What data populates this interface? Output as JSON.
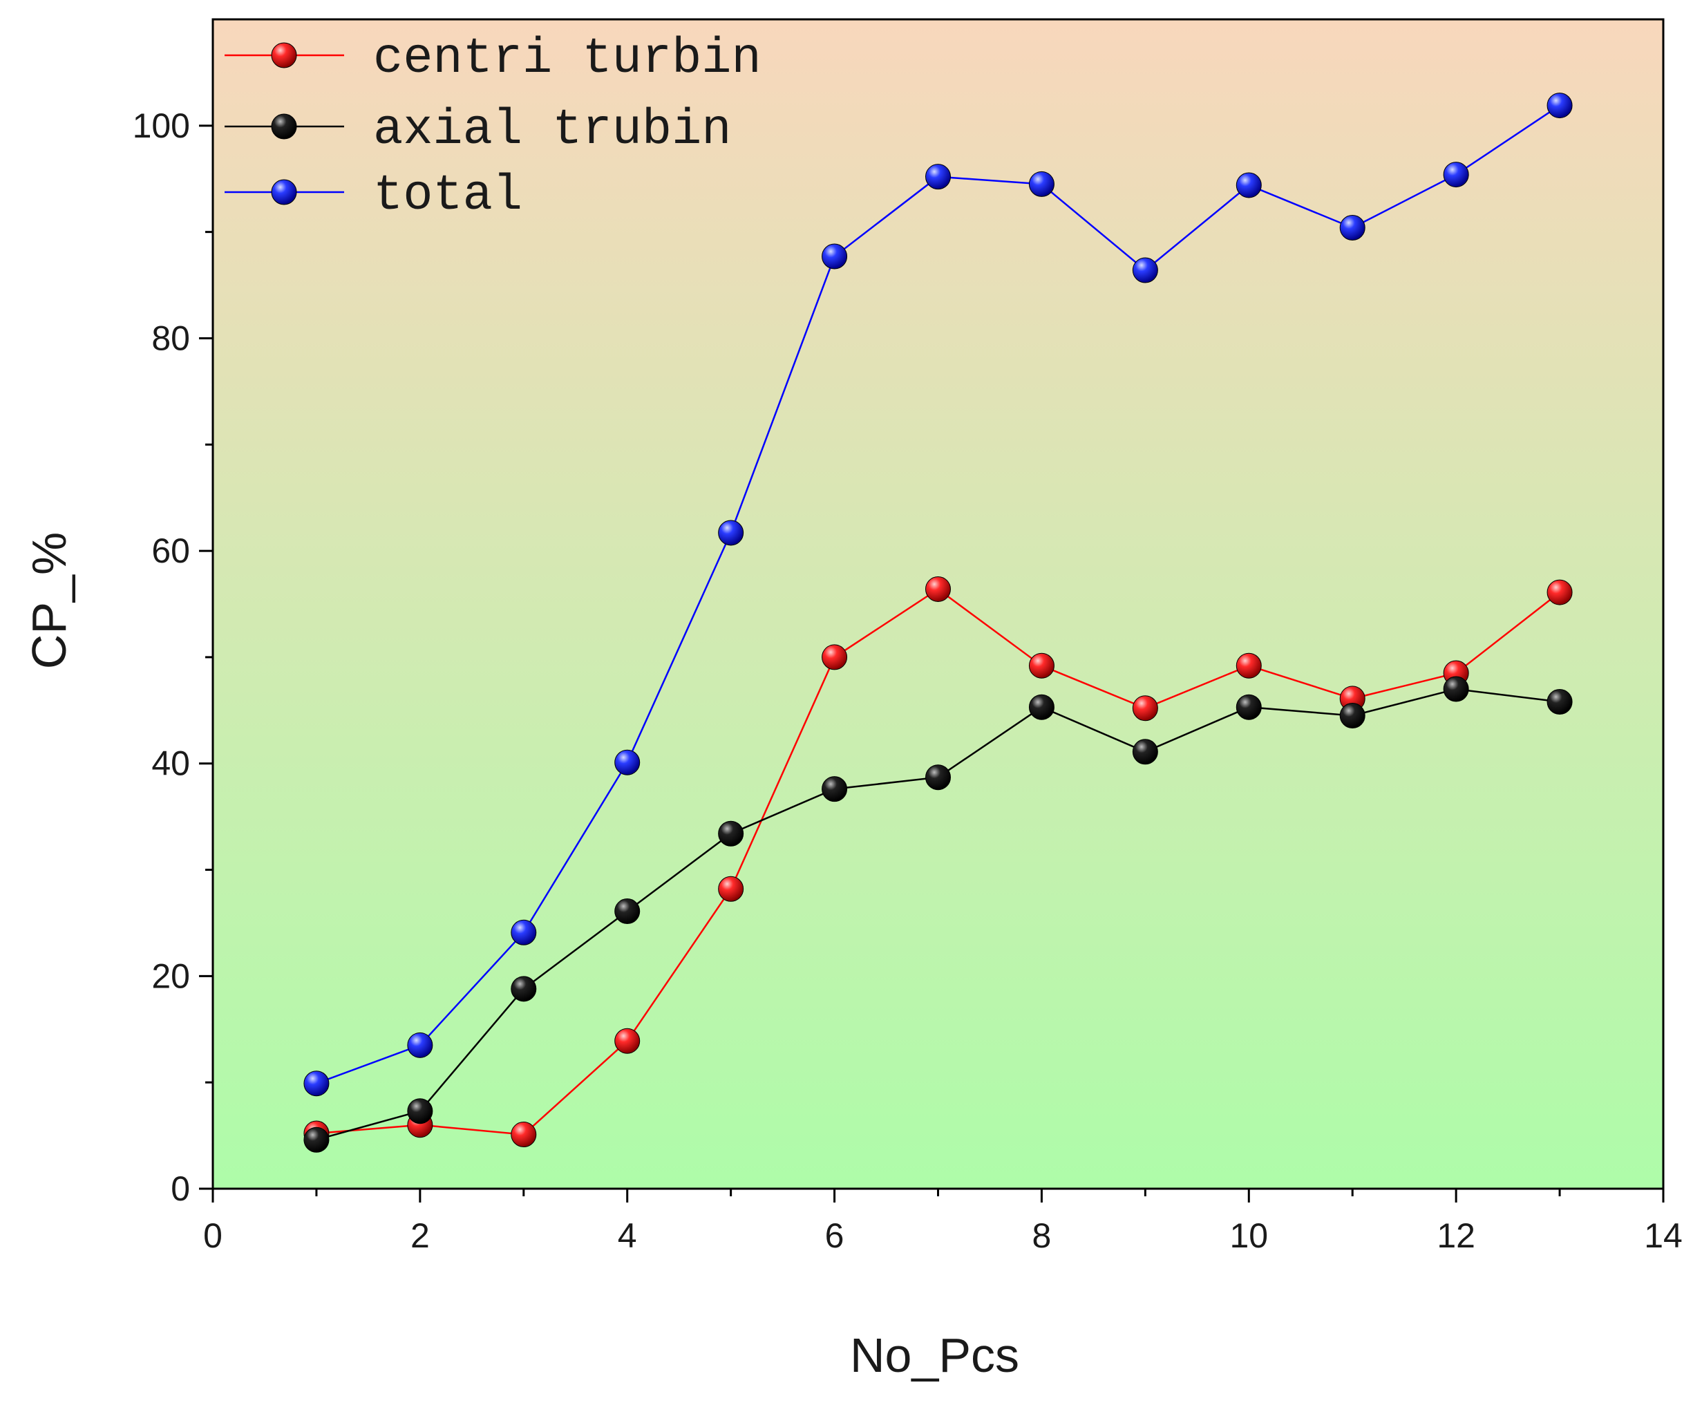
{
  "chart_data": {
    "type": "line",
    "title": "",
    "xlabel": "No_Pcs",
    "ylabel": "CP_%",
    "xlim": [
      0,
      14
    ],
    "ylim": [
      0,
      110
    ],
    "xticks": [
      0,
      2,
      4,
      6,
      8,
      10,
      12,
      14
    ],
    "yticks": [
      0,
      20,
      40,
      60,
      80,
      100
    ],
    "x_tick_labels": [
      "0",
      "2",
      "4",
      "6",
      "8",
      "10",
      "12",
      "14"
    ],
    "y_tick_labels": [
      "0",
      "20",
      "40",
      "60",
      "80",
      "100"
    ],
    "legend_position": "top-left",
    "grid": false,
    "background_gradient": {
      "top": "#f8d7bc",
      "bottom": "#aefca9"
    },
    "x": [
      1,
      2,
      3,
      4,
      5,
      6,
      7,
      8,
      9,
      10,
      11,
      12,
      13
    ],
    "series": [
      {
        "name": "centri turbin",
        "color": "#ff0000",
        "values": [
          5.2,
          6.0,
          5.1,
          13.9,
          28.2,
          50.0,
          56.4,
          49.2,
          45.2,
          49.2,
          46.1,
          48.5,
          56.1
        ]
      },
      {
        "name": "axial trubin",
        "color": "#000000",
        "values": [
          4.6,
          7.3,
          18.8,
          26.1,
          33.4,
          37.6,
          38.7,
          45.3,
          41.1,
          45.3,
          44.5,
          47.0,
          45.8
        ]
      },
      {
        "name": "total",
        "color": "#0000ff",
        "values": [
          9.9,
          13.5,
          24.1,
          40.1,
          61.7,
          87.7,
          95.2,
          94.5,
          86.4,
          94.4,
          90.4,
          95.4,
          101.9
        ]
      }
    ]
  }
}
